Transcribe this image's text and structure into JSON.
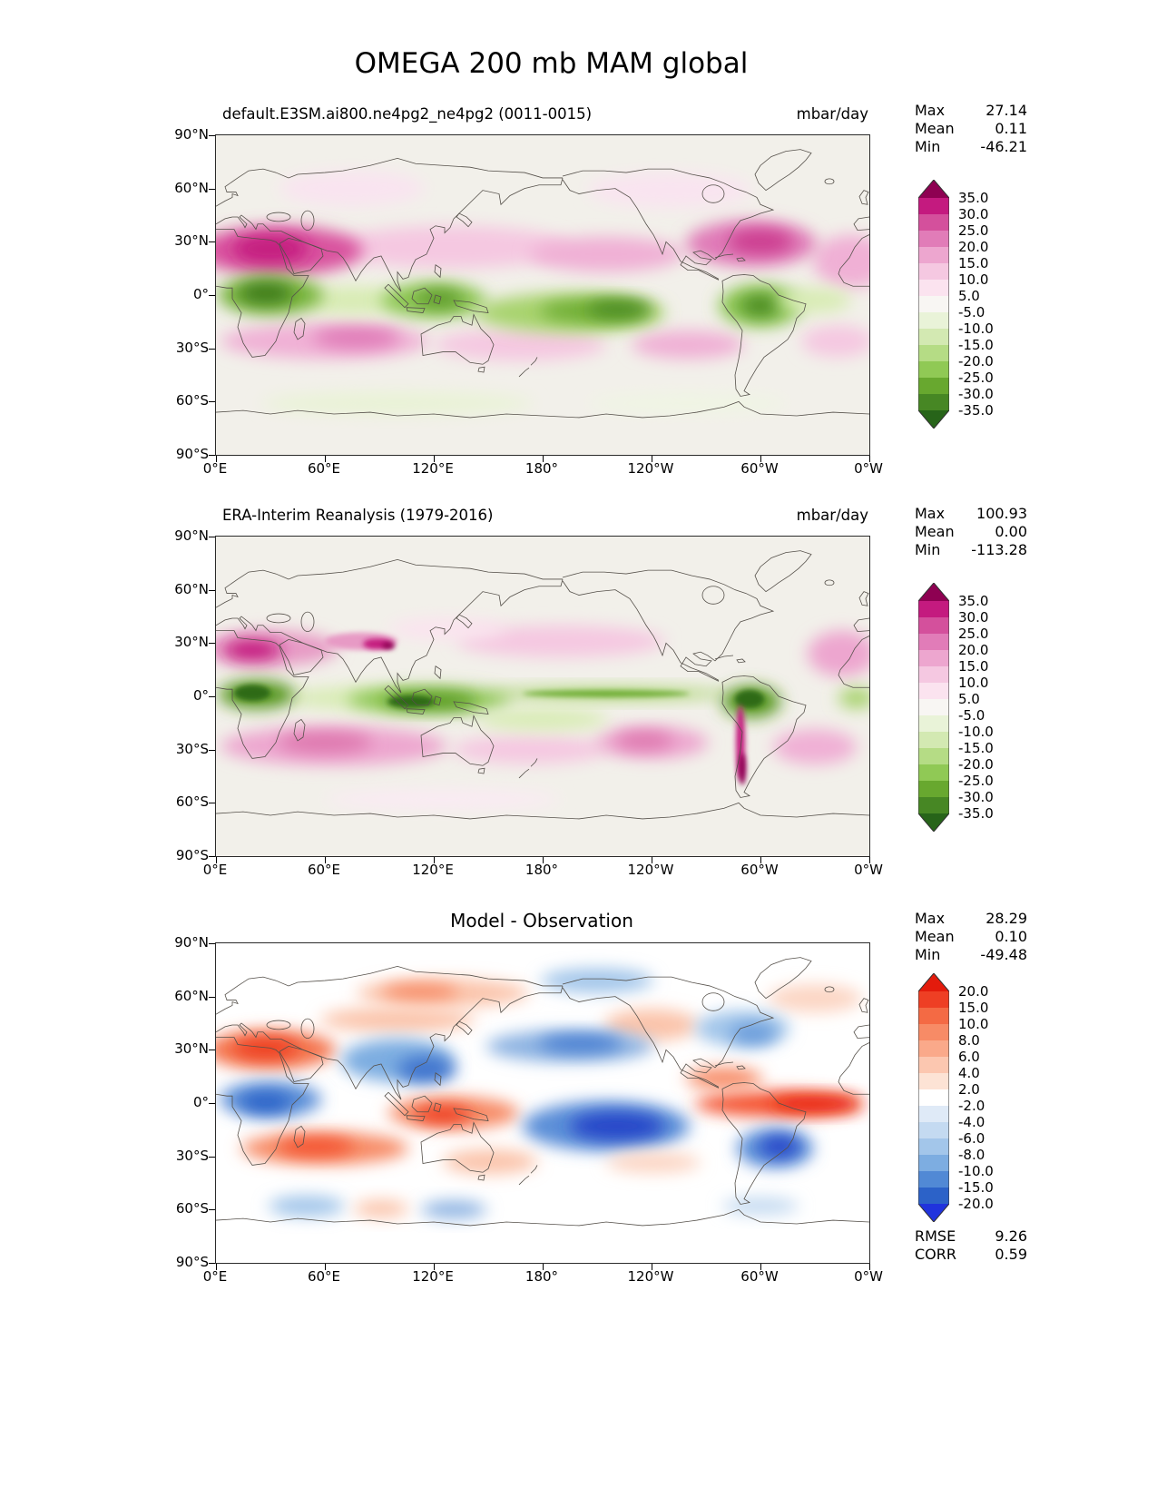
{
  "title": "OMEGA 200 mb MAM global",
  "axes": {
    "lat_ticks": [
      "90°N",
      "60°N",
      "30°N",
      "0°",
      "30°S",
      "60°S",
      "90°S"
    ],
    "lon_ticks": [
      "0°E",
      "60°E",
      "120°E",
      "180°",
      "120°W",
      "60°W",
      "0°W"
    ]
  },
  "panels": [
    {
      "id": "model",
      "subtitle": "default.E3SM.ai800.ne4pg2_ne4pg2 (0011-0015)",
      "units": "mbar/day",
      "map_bg": "#f2f0ea",
      "stats": [
        {
          "label": "Max",
          "value": "27.14"
        },
        {
          "label": "Mean",
          "value": "0.11"
        },
        {
          "label": "Min",
          "value": "-46.21"
        }
      ],
      "colorbar": {
        "tick_labels": [
          "35.0",
          "30.0",
          "25.0",
          "20.0",
          "15.0",
          "10.0",
          "5.0",
          "-5.0",
          "-10.0",
          "-15.0",
          "-20.0",
          "-25.0",
          "-30.0",
          "-35.0"
        ],
        "segment_colors": [
          "#c41a7f",
          "#d4509c",
          "#e17cb8",
          "#eda6cf",
          "#f5c8e1",
          "#fbe3ef",
          "#f8f6f3",
          "#e9f3d8",
          "#d3e9b2",
          "#b5dc85",
          "#90c955",
          "#68a82f",
          "#478724"
        ],
        "arrow_top": "#8e0152",
        "arrow_bottom": "#276419"
      },
      "field": [
        [
          150,
          60,
          80,
          20,
          "#f9e4f0"
        ],
        [
          500,
          62,
          90,
          20,
          "#f9e4f0"
        ],
        [
          260,
          126,
          130,
          24,
          "#f5c8e1"
        ],
        [
          430,
          134,
          85,
          20,
          "#f0b0d5"
        ],
        [
          700,
          142,
          42,
          30,
          "#f0b0d5"
        ],
        [
          70,
          130,
          92,
          28,
          "#d9539f"
        ],
        [
          60,
          128,
          42,
          16,
          "#c41a7f"
        ],
        [
          590,
          122,
          72,
          26,
          "#e07cb8"
        ],
        [
          600,
          120,
          36,
          14,
          "#cc3d90"
        ],
        [
          120,
          232,
          115,
          20,
          "#f0b0d5"
        ],
        [
          155,
          228,
          48,
          12,
          "#e07cb8"
        ],
        [
          335,
          236,
          95,
          18,
          "#f5c8e1"
        ],
        [
          520,
          236,
          62,
          16,
          "#f0b0d5"
        ],
        [
          685,
          232,
          40,
          18,
          "#f5c8e1"
        ],
        [
          150,
          186,
          60,
          16,
          "#d8ecb4"
        ],
        [
          60,
          180,
          58,
          22,
          "#79b53c"
        ],
        [
          55,
          178,
          30,
          12,
          "#3d7a1e"
        ],
        [
          240,
          186,
          58,
          20,
          "#8cc653"
        ],
        [
          246,
          184,
          26,
          10,
          "#5d9a2c"
        ],
        [
          390,
          200,
          105,
          22,
          "#a8d36e"
        ],
        [
          415,
          198,
          58,
          13,
          "#6fae36"
        ],
        [
          445,
          196,
          36,
          10,
          "#4c8b22"
        ],
        [
          600,
          192,
          46,
          24,
          "#8cc653"
        ],
        [
          600,
          192,
          22,
          12,
          "#4c8b22"
        ],
        [
          660,
          186,
          40,
          14,
          "#d8ecb4"
        ],
        [
          200,
          302,
          150,
          13,
          "#e9f3d6"
        ],
        [
          520,
          302,
          110,
          11,
          "#eff5e3"
        ]
      ]
    },
    {
      "id": "obs",
      "subtitle": "ERA-Interim Reanalysis (1979-2016)",
      "units": "mbar/day",
      "map_bg": "#f2f0ea",
      "stats": [
        {
          "label": "Max",
          "value": "100.93"
        },
        {
          "label": "Mean",
          "value": "0.00"
        },
        {
          "label": "Min",
          "value": "-113.28"
        }
      ],
      "colorbar": {
        "tick_labels": [
          "35.0",
          "30.0",
          "25.0",
          "20.0",
          "15.0",
          "10.0",
          "5.0",
          "-5.0",
          "-10.0",
          "-15.0",
          "-20.0",
          "-25.0",
          "-30.0",
          "-35.0"
        ],
        "segment_colors": [
          "#c41a7f",
          "#d4509c",
          "#e17cb8",
          "#eda6cf",
          "#f5c8e1",
          "#fbe3ef",
          "#f8f6f3",
          "#e9f3d8",
          "#d3e9b2",
          "#b5dc85",
          "#90c955",
          "#68a82f",
          "#478724"
        ],
        "arrow_top": "#8e0152",
        "arrow_bottom": "#276419"
      },
      "field": [
        [
          380,
          118,
          115,
          18,
          "#f5c8e1"
        ],
        [
          255,
          104,
          65,
          12,
          "#fbe3ef"
        ],
        [
          60,
          126,
          75,
          20,
          "#e79ac5"
        ],
        [
          40,
          128,
          32,
          12,
          "#c41a7f"
        ],
        [
          160,
          118,
          40,
          10,
          "#e79ac5",
          1
        ],
        [
          178,
          121,
          16,
          6,
          "#c41a7f",
          1
        ],
        [
          190,
          123,
          7,
          4,
          "#8e0152",
          1
        ],
        [
          690,
          132,
          38,
          26,
          "#eda6cf"
        ],
        [
          130,
          236,
          125,
          22,
          "#eda6cf"
        ],
        [
          120,
          232,
          52,
          12,
          "#de77ae"
        ],
        [
          345,
          240,
          85,
          16,
          "#f5c8e1"
        ],
        [
          480,
          232,
          62,
          18,
          "#eda6cf"
        ],
        [
          472,
          230,
          32,
          10,
          "#de77ae"
        ],
        [
          660,
          237,
          46,
          20,
          "#f0b0d5"
        ],
        [
          250,
          296,
          130,
          10,
          "#fbeaf4"
        ],
        [
          150,
          182,
          70,
          12,
          "#d8ecb4"
        ],
        [
          45,
          178,
          42,
          16,
          "#55961f"
        ],
        [
          40,
          176,
          20,
          9,
          "#2d6b14",
          1
        ],
        [
          235,
          184,
          90,
          15,
          "#8cc653"
        ],
        [
          235,
          185,
          52,
          9,
          "#55961f"
        ],
        [
          215,
          186,
          26,
          7,
          "#2d6b14",
          1
        ],
        [
          430,
          177,
          135,
          7,
          "#a8d36e"
        ],
        [
          430,
          177,
          92,
          4,
          "#6fae36",
          1
        ],
        [
          360,
          206,
          72,
          12,
          "#d8ecb4"
        ],
        [
          590,
          186,
          32,
          18,
          "#55961f"
        ],
        [
          588,
          183,
          16,
          10,
          "#2d6b14",
          1
        ],
        [
          578,
          232,
          5,
          42,
          "#c41a7f",
          1
        ],
        [
          580,
          262,
          4,
          18,
          "#8e0152",
          1
        ],
        [
          706,
          182,
          20,
          12,
          "#a8d36e"
        ]
      ]
    },
    {
      "id": "diff",
      "subtitle": "Model - Observation",
      "map_bg": "#ffffff",
      "stats": [
        {
          "label": "Max",
          "value": "28.29"
        },
        {
          "label": "Mean",
          "value": "0.10"
        },
        {
          "label": "Min",
          "value": "-49.48"
        }
      ],
      "metrics": [
        {
          "label": "RMSE",
          "value": "9.26"
        },
        {
          "label": "CORR",
          "value": "0.59"
        }
      ],
      "colorbar": {
        "tick_labels": [
          "20.0",
          "15.0",
          "10.0",
          "8.0",
          "6.0",
          "4.0",
          "2.0",
          "-2.0",
          "-4.0",
          "-6.0",
          "-8.0",
          "-10.0",
          "-15.0",
          "-20.0"
        ],
        "segment_colors": [
          "#ee3f24",
          "#f46a44",
          "#f78b66",
          "#faa98a",
          "#fcc7b0",
          "#fde3d5",
          "#ffffff",
          "#dfeaf7",
          "#c4daf1",
          "#a3c6ea",
          "#7dade1",
          "#5189d5",
          "#2c62c8"
        ],
        "arrow_top": "#e31b0c",
        "arrow_bottom": "#2033dd"
      },
      "field": [
        [
          250,
          56,
          95,
          16,
          "#fbc4ab"
        ],
        [
          225,
          55,
          42,
          9,
          "#f78b66"
        ],
        [
          420,
          42,
          62,
          14,
          "#a3c6ea"
        ],
        [
          660,
          62,
          52,
          16,
          "#fcd6c4"
        ],
        [
          480,
          92,
          52,
          18,
          "#fbc4ab"
        ],
        [
          580,
          96,
          52,
          20,
          "#a3c6ea"
        ],
        [
          592,
          102,
          26,
          12,
          "#6b9cdb"
        ],
        [
          200,
          86,
          85,
          14,
          "#fbc4ab"
        ],
        [
          60,
          120,
          72,
          22,
          "#f4764f"
        ],
        [
          55,
          118,
          36,
          12,
          "#ee3f24"
        ],
        [
          200,
          132,
          62,
          24,
          "#7dade1"
        ],
        [
          232,
          142,
          32,
          15,
          "#3f74ce"
        ],
        [
          390,
          116,
          92,
          18,
          "#8db3e2"
        ],
        [
          402,
          113,
          46,
          10,
          "#4a7fd2"
        ],
        [
          60,
          176,
          56,
          20,
          "#5c8fd8"
        ],
        [
          55,
          179,
          28,
          11,
          "#2c62c8"
        ],
        [
          120,
          231,
          92,
          18,
          "#f78b66"
        ],
        [
          110,
          229,
          42,
          10,
          "#f4512e"
        ],
        [
          262,
          191,
          72,
          18,
          "#f78b66"
        ],
        [
          250,
          193,
          32,
          10,
          "#ee3f24"
        ],
        [
          430,
          206,
          92,
          28,
          "#5c8fd8"
        ],
        [
          442,
          206,
          52,
          16,
          "#2546c9"
        ],
        [
          620,
          181,
          92,
          14,
          "#f4512e"
        ],
        [
          662,
          181,
          50,
          9,
          "#e8220d"
        ],
        [
          560,
          152,
          42,
          12,
          "#f78b66"
        ],
        [
          616,
          231,
          42,
          22,
          "#5c8fd8"
        ],
        [
          621,
          229,
          22,
          12,
          "#2546c9"
        ],
        [
          302,
          246,
          52,
          14,
          "#fbc4ab"
        ],
        [
          482,
          247,
          52,
          12,
          "#fcd6c4"
        ],
        [
          100,
          296,
          42,
          12,
          "#a3c6ea"
        ],
        [
          262,
          300,
          36,
          10,
          "#8db3e2"
        ],
        [
          182,
          299,
          30,
          10,
          "#fbc4ab"
        ],
        [
          600,
          296,
          42,
          10,
          "#c4daf1"
        ]
      ]
    }
  ],
  "chart_data": [
    {
      "type": "heatmap",
      "subtype": "filled-contour global lat-lon map",
      "title": "default.E3SM.ai800.ne4pg2_ne4pg2 (0011-0015)",
      "suptitle": "OMEGA 200 mb MAM global",
      "units": "mbar/day",
      "stats": {
        "max": 27.14,
        "mean": 0.11,
        "min": -46.21
      },
      "contour_levels": [
        -35,
        -30,
        -25,
        -20,
        -15,
        -10,
        -5,
        5,
        10,
        15,
        20,
        25,
        30,
        35
      ],
      "colormap_hex": [
        "#276419",
        "#478724",
        "#68a82f",
        "#90c955",
        "#b5dc85",
        "#d3e9b2",
        "#e9f3d8",
        "#f8f6f3",
        "#fbe3ef",
        "#f5c8e1",
        "#eda6cf",
        "#e17cb8",
        "#d4509c",
        "#c41a7f",
        "#8e0152"
      ],
      "x_ticks": [
        "0°E",
        "60°E",
        "120°E",
        "180°",
        "120°W",
        "60°W",
        "0°W"
      ],
      "y_ticks": [
        "90°N",
        "60°N",
        "30°N",
        "0°",
        "30°S",
        "60°S",
        "90°S"
      ],
      "x_range_deg": [
        0,
        360
      ],
      "y_range_deg": [
        -90,
        90
      ],
      "legend_position": "right colorbar with pointed over/under arrows"
    },
    {
      "type": "heatmap",
      "subtype": "filled-contour global lat-lon map",
      "title": "ERA-Interim Reanalysis (1979-2016)",
      "units": "mbar/day",
      "stats": {
        "max": 100.93,
        "mean": 0.0,
        "min": -113.28
      },
      "contour_levels": [
        -35,
        -30,
        -25,
        -20,
        -15,
        -10,
        -5,
        5,
        10,
        15,
        20,
        25,
        30,
        35
      ],
      "colormap_hex": [
        "#276419",
        "#478724",
        "#68a82f",
        "#90c955",
        "#b5dc85",
        "#d3e9b2",
        "#e9f3d8",
        "#f8f6f3",
        "#fbe3ef",
        "#f5c8e1",
        "#eda6cf",
        "#e17cb8",
        "#d4509c",
        "#c41a7f",
        "#8e0152"
      ],
      "x_ticks": [
        "0°E",
        "60°E",
        "120°E",
        "180°",
        "120°W",
        "60°W",
        "0°W"
      ],
      "y_ticks": [
        "90°N",
        "60°N",
        "30°N",
        "0°",
        "30°S",
        "60°S",
        "90°S"
      ],
      "x_range_deg": [
        0,
        360
      ],
      "y_range_deg": [
        -90,
        90
      ],
      "legend_position": "right colorbar with pointed over/under arrows"
    },
    {
      "type": "heatmap",
      "subtype": "filled-contour global lat-lon difference map",
      "title": "Model - Observation",
      "stats": {
        "max": 28.29,
        "mean": 0.1,
        "min": -49.48
      },
      "rmse": 9.26,
      "corr": 0.59,
      "contour_levels": [
        -20,
        -15,
        -10,
        -8,
        -6,
        -4,
        -2,
        2,
        4,
        6,
        8,
        10,
        15,
        20
      ],
      "colormap_hex": [
        "#2033dd",
        "#2c62c8",
        "#5189d5",
        "#7dade1",
        "#a3c6ea",
        "#c4daf1",
        "#dfeaf7",
        "#ffffff",
        "#fde3d5",
        "#fcc7b0",
        "#faa98a",
        "#f78b66",
        "#f46a44",
        "#ee3f24",
        "#e31b0c"
      ],
      "x_ticks": [
        "0°E",
        "60°E",
        "120°E",
        "180°",
        "120°W",
        "60°W",
        "0°W"
      ],
      "y_ticks": [
        "90°N",
        "60°N",
        "30°N",
        "0°",
        "30°S",
        "60°S",
        "90°S"
      ],
      "x_range_deg": [
        0,
        360
      ],
      "y_range_deg": [
        -90,
        90
      ],
      "legend_position": "right colorbar with pointed over/under arrows"
    }
  ]
}
